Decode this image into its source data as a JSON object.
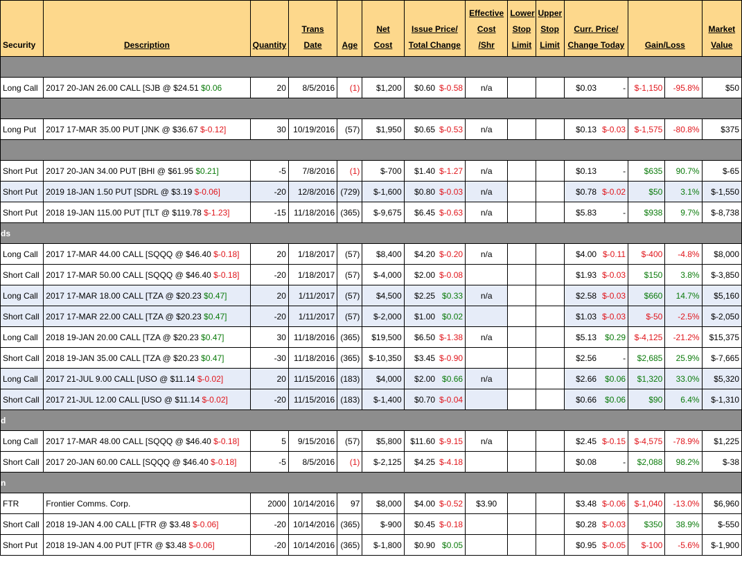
{
  "headers": {
    "security": "Security",
    "description": "Description",
    "quantity": "Quantity",
    "trans_date_1": "Trans",
    "trans_date_2": "Date",
    "age": "Age",
    "net_cost_1": "Net",
    "net_cost_2": "Cost",
    "issue_1": "Issue Price/",
    "issue_2": "Total Change",
    "eff_1": "Effective",
    "eff_2": "Cost",
    "eff_3": "/Shr",
    "lower_1": "Lower",
    "lower_2": "Stop",
    "lower_3": "Limit",
    "upper_1": "Upper",
    "upper_2": "Stop",
    "upper_3": "Limit",
    "curr_1": "Curr. Price/",
    "curr_2": "Change Today",
    "gainloss": "Gain/Loss",
    "mkt_1": "Market",
    "mkt_2": "Value"
  },
  "sections": [
    {
      "label": "",
      "rows": [
        {
          "security": "Long Call",
          "desc": "2017 20-JAN 26.00 CALL [SJB @ $24.51 ",
          "desc_chg": "$0.06",
          "desc_chg_color": "grn",
          "qty": "20",
          "date": "8/5/2016",
          "age": "(1)",
          "age_color": "red",
          "cost": "$1,200",
          "issue": "$0.60",
          "total": "$-0.58",
          "total_color": "red",
          "eff": "n/a",
          "curr": "$0.03",
          "today": "-",
          "today_color": "",
          "gl": "$-1,150",
          "glp": "-95.8%",
          "gl_color": "red",
          "mv": "$50",
          "blue": false
        }
      ]
    },
    {
      "label": "",
      "rows": [
        {
          "security": "Long Put",
          "desc": "2017 17-MAR 35.00 PUT [JNK @ $36.67 ",
          "desc_chg": "$-0.12]",
          "desc_chg_color": "red",
          "qty": "30",
          "date": "10/19/2016",
          "age": "(57)",
          "age_color": "",
          "cost": "$1,950",
          "issue": "$0.65",
          "total": "$-0.53",
          "total_color": "red",
          "eff": "n/a",
          "curr": "$0.13",
          "today": "$-0.03",
          "today_color": "red",
          "gl": "$-1,575",
          "glp": "-80.8%",
          "gl_color": "red",
          "mv": "$375",
          "blue": false
        }
      ]
    },
    {
      "label": "",
      "rows": [
        {
          "security": "Short Put",
          "desc": "2017 20-JAN 34.00 PUT [BHI @ $61.95 ",
          "desc_chg": "$0.21]",
          "desc_chg_color": "grn",
          "qty": "-5",
          "date": "7/8/2016",
          "age": "(1)",
          "age_color": "red",
          "cost": "$-700",
          "issue": "$1.40",
          "total": "$-1.27",
          "total_color": "red",
          "eff": "n/a",
          "curr": "$0.13",
          "today": "-",
          "today_color": "",
          "gl": "$635",
          "glp": "90.7%",
          "gl_color": "grn",
          "mv": "$-65",
          "blue": false
        },
        {
          "security": "Short Put",
          "desc": "2019 18-JAN 1.50 PUT [SDRL @ $3.19 ",
          "desc_chg": "$-0.06]",
          "desc_chg_color": "red",
          "qty": "-20",
          "date": "12/8/2016",
          "age": "(729)",
          "age_color": "",
          "cost": "$-1,600",
          "issue": "$0.80",
          "total": "$-0.03",
          "total_color": "red",
          "eff": "n/a",
          "curr": "$0.78",
          "today": "$-0.02",
          "today_color": "red",
          "gl": "$50",
          "glp": "3.1%",
          "gl_color": "grn",
          "mv": "$-1,550",
          "blue": true
        },
        {
          "security": "Short Put",
          "desc": "2018 19-JAN 115.00 PUT [TLT @ $119.78 ",
          "desc_chg": "$-1.23]",
          "desc_chg_color": "red",
          "qty": "-15",
          "date": "11/18/2016",
          "age": "(365)",
          "age_color": "",
          "cost": "$-9,675",
          "issue": "$6.45",
          "total": "$-0.63",
          "total_color": "red",
          "eff": "n/a",
          "curr": "$5.83",
          "today": "-",
          "today_color": "",
          "gl": "$938",
          "glp": "9.7%",
          "gl_color": "grn",
          "mv": "$-8,738",
          "blue": false
        }
      ]
    },
    {
      "label": "ds",
      "rows": [
        {
          "security": "Long Call",
          "desc": "2017 17-MAR 44.00 CALL [SQQQ @ $46.40 ",
          "desc_chg": "$-0.18]",
          "desc_chg_color": "red",
          "qty": "20",
          "date": "1/18/2017",
          "age": "(57)",
          "age_color": "",
          "cost": "$8,400",
          "issue": "$4.20",
          "total": "$-0.20",
          "total_color": "red",
          "eff": "n/a",
          "curr": "$4.00",
          "today": "$-0.11",
          "today_color": "red",
          "gl": "$-400",
          "glp": "-4.8%",
          "gl_color": "red",
          "mv": "$8,000",
          "blue": false
        },
        {
          "security": "Short Call",
          "desc": "2017 17-MAR 50.00 CALL [SQQQ @ $46.40 ",
          "desc_chg": "$-0.18]",
          "desc_chg_color": "red",
          "qty": "-20",
          "date": "1/18/2017",
          "age": "(57)",
          "age_color": "",
          "cost": "$-4,000",
          "issue": "$2.00",
          "total": "$-0.08",
          "total_color": "red",
          "eff": "",
          "curr": "$1.93",
          "today": "$-0.03",
          "today_color": "red",
          "gl": "$150",
          "glp": "3.8%",
          "gl_color": "grn",
          "mv": "$-3,850",
          "blue": false
        },
        {
          "security": "Long Call",
          "desc": "2017 17-MAR 18.00 CALL [TZA @ $20.23 ",
          "desc_chg": "$0.47]",
          "desc_chg_color": "grn",
          "qty": "20",
          "date": "1/11/2017",
          "age": "(57)",
          "age_color": "",
          "cost": "$4,500",
          "issue": "$2.25",
          "total": "$0.33",
          "total_color": "grn",
          "eff": "n/a",
          "curr": "$2.58",
          "today": "$-0.03",
          "today_color": "red",
          "gl": "$660",
          "glp": "14.7%",
          "gl_color": "grn",
          "mv": "$5,160",
          "blue": true
        },
        {
          "security": "Short Call",
          "desc": "2017 17-MAR 22.00 CALL [TZA @ $20.23 ",
          "desc_chg": "$0.47]",
          "desc_chg_color": "grn",
          "qty": "-20",
          "date": "1/11/2017",
          "age": "(57)",
          "age_color": "",
          "cost": "$-2,000",
          "issue": "$1.00",
          "total": "$0.02",
          "total_color": "grn",
          "eff": "",
          "curr": "$1.03",
          "today": "$-0.03",
          "today_color": "red",
          "gl": "$-50",
          "glp": "-2.5%",
          "gl_color": "red",
          "mv": "$-2,050",
          "blue": true
        },
        {
          "security": "Long Call",
          "desc": "2018 19-JAN 20.00 CALL [TZA @ $20.23 ",
          "desc_chg": "$0.47]",
          "desc_chg_color": "grn",
          "qty": "30",
          "date": "11/18/2016",
          "age": "(365)",
          "age_color": "",
          "cost": "$19,500",
          "issue": "$6.50",
          "total": "$-1.38",
          "total_color": "red",
          "eff": "n/a",
          "curr": "$5.13",
          "today": "$0.29",
          "today_color": "grn",
          "gl": "$-4,125",
          "glp": "-21.2%",
          "gl_color": "red",
          "mv": "$15,375",
          "blue": false
        },
        {
          "security": "Short Call",
          "desc": "2018 19-JAN 35.00 CALL [TZA @ $20.23 ",
          "desc_chg": "$0.47]",
          "desc_chg_color": "grn",
          "qty": "-30",
          "date": "11/18/2016",
          "age": "(365)",
          "age_color": "",
          "cost": "$-10,350",
          "issue": "$3.45",
          "total": "$-0.90",
          "total_color": "red",
          "eff": "",
          "curr": "$2.56",
          "today": "-",
          "today_color": "",
          "gl": "$2,685",
          "glp": "25.9%",
          "gl_color": "grn",
          "mv": "$-7,665",
          "blue": false
        },
        {
          "security": "Long Call",
          "desc": "2017 21-JUL 9.00 CALL [USO @ $11.14 ",
          "desc_chg": "$-0.02]",
          "desc_chg_color": "red",
          "qty": "20",
          "date": "11/15/2016",
          "age": "(183)",
          "age_color": "",
          "cost": "$4,000",
          "issue": "$2.00",
          "total": "$0.66",
          "total_color": "grn",
          "eff": "n/a",
          "curr": "$2.66",
          "today": "$0.06",
          "today_color": "grn",
          "gl": "$1,320",
          "glp": "33.0%",
          "gl_color": "grn",
          "mv": "$5,320",
          "blue": true
        },
        {
          "security": "Short Call",
          "desc": "2017 21-JUL 12.00 CALL [USO @ $11.14 ",
          "desc_chg": "$-0.02]",
          "desc_chg_color": "red",
          "qty": "-20",
          "date": "11/15/2016",
          "age": "(183)",
          "age_color": "",
          "cost": "$-1,400",
          "issue": "$0.70",
          "total": "$-0.04",
          "total_color": "red",
          "eff": "",
          "curr": "$0.66",
          "today": "$0.06",
          "today_color": "grn",
          "gl": "$90",
          "glp": "6.4%",
          "gl_color": "grn",
          "mv": "$-1,310",
          "blue": true
        }
      ]
    },
    {
      "label": "d",
      "rows": [
        {
          "security": "Long Call",
          "desc": "2017 17-MAR 48.00 CALL [SQQQ @ $46.40 ",
          "desc_chg": "$-0.18]",
          "desc_chg_color": "red",
          "qty": "5",
          "date": "9/15/2016",
          "age": "(57)",
          "age_color": "",
          "cost": "$5,800",
          "issue": "$11.60",
          "total": "$-9.15",
          "total_color": "red",
          "eff": "n/a",
          "curr": "$2.45",
          "today": "$-0.15",
          "today_color": "red",
          "gl": "$-4,575",
          "glp": "-78.9%",
          "gl_color": "red",
          "mv": "$1,225",
          "blue": false
        },
        {
          "security": "Short Call",
          "desc": "2017 20-JAN 60.00 CALL [SQQQ @ $46.40 ",
          "desc_chg": "$-0.18]",
          "desc_chg_color": "red",
          "qty": "-5",
          "date": "8/5/2016",
          "age": "(1)",
          "age_color": "red",
          "cost": "$-2,125",
          "issue": "$4.25",
          "total": "$-4.18",
          "total_color": "red",
          "eff": "",
          "curr": "$0.08",
          "today": "-",
          "today_color": "",
          "gl": "$2,088",
          "glp": "98.2%",
          "gl_color": "grn",
          "mv": "$-38",
          "blue": false
        }
      ]
    },
    {
      "label": "n",
      "rows": [
        {
          "security": "FTR",
          "desc": "Frontier Comms. Corp.",
          "desc_chg": "",
          "desc_chg_color": "",
          "qty": "2000",
          "date": "10/14/2016",
          "age": "97",
          "age_color": "",
          "cost": "$8,000",
          "issue": "$4.00",
          "total": "$-0.52",
          "total_color": "red",
          "eff": "$3.90",
          "curr": "$3.48",
          "today": "$-0.06",
          "today_color": "red",
          "gl": "$-1,040",
          "glp": "-13.0%",
          "gl_color": "red",
          "mv": "$6,960",
          "blue": false
        },
        {
          "security": "Short Call",
          "desc": "2018 19-JAN 4.00 CALL [FTR @ $3.48 ",
          "desc_chg": "$-0.06]",
          "desc_chg_color": "red",
          "qty": "-20",
          "date": "10/14/2016",
          "age": "(365)",
          "age_color": "",
          "cost": "$-900",
          "issue": "$0.45",
          "total": "$-0.18",
          "total_color": "red",
          "eff": "",
          "curr": "$0.28",
          "today": "$-0.03",
          "today_color": "red",
          "gl": "$350",
          "glp": "38.9%",
          "gl_color": "grn",
          "mv": "$-550",
          "blue": false
        },
        {
          "security": "Short Put",
          "desc": "2018 19-JAN 4.00 PUT [FTR @ $3.48 ",
          "desc_chg": "$-0.06]",
          "desc_chg_color": "red",
          "qty": "-20",
          "date": "10/14/2016",
          "age": "(365)",
          "age_color": "",
          "cost": "$-1,800",
          "issue": "$0.90",
          "total": "$0.05",
          "total_color": "grn",
          "eff": "",
          "curr": "$0.95",
          "today": "$-0.05",
          "today_color": "red",
          "gl": "$-100",
          "glp": "-5.6%",
          "gl_color": "red",
          "mv": "$-1,900",
          "blue": false
        }
      ]
    }
  ]
}
